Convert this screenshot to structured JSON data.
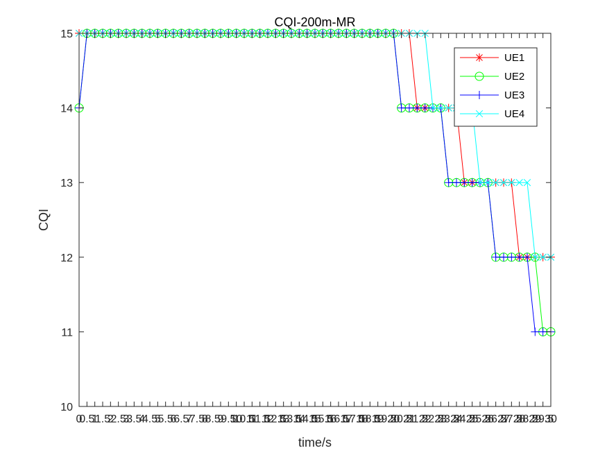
{
  "chart_data": {
    "type": "line",
    "title": "CQI-200m-MR",
    "xlabel": "time/s",
    "ylabel": "CQI",
    "xlim": [
      0,
      30
    ],
    "ylim": [
      10,
      15
    ],
    "x_tick_labels": [
      "0",
      "0.5",
      "1",
      "1.5",
      "2",
      "2.5",
      "3",
      "3.5",
      "4",
      "4.5",
      "5",
      "5.5",
      "6",
      "6.5",
      "7",
      "7.5",
      "8",
      "8.5",
      "9",
      "9.5",
      "10",
      "10.5",
      "11",
      "11.5",
      "12",
      "12.5",
      "13",
      "13.5",
      "14",
      "14.5",
      "15",
      "15.5",
      "16",
      "16.5",
      "17",
      "17.5",
      "18",
      "18.5",
      "19",
      "19.5",
      "20",
      "20.5",
      "21",
      "21.5",
      "22",
      "22.5",
      "23",
      "23.5",
      "24",
      "24.5",
      "25",
      "25.5",
      "26",
      "26.5",
      "27",
      "27.5",
      "28",
      "28.5",
      "29",
      "29.5",
      "30"
    ],
    "y_tick_labels": [
      "10",
      "11",
      "12",
      "13",
      "14",
      "15"
    ],
    "grid": false,
    "legend_position": "top-right",
    "series": [
      {
        "name": "UE1",
        "color": "#ff0000",
        "marker": "asterisk",
        "x": [
          0,
          0.5,
          1,
          1.5,
          2,
          2.5,
          3,
          3.5,
          4,
          4.5,
          5,
          5.5,
          6,
          6.5,
          7,
          7.5,
          8,
          8.5,
          9,
          9.5,
          10,
          10.5,
          11,
          11.5,
          12,
          12.5,
          13,
          13.5,
          14,
          14.5,
          15,
          15.5,
          16,
          16.5,
          17,
          17.5,
          18,
          18.5,
          19,
          19.5,
          20,
          20.5,
          21,
          21.5,
          22,
          22.5,
          23,
          23.5,
          24,
          24.5,
          25,
          25.5,
          26,
          26.5,
          27,
          27.5,
          28,
          28.5,
          29,
          29.5,
          30
        ],
        "y": [
          15,
          15,
          15,
          15,
          15,
          15,
          15,
          15,
          15,
          15,
          15,
          15,
          15,
          15,
          15,
          15,
          15,
          15,
          15,
          15,
          15,
          15,
          15,
          15,
          15,
          15,
          15,
          15,
          15,
          15,
          15,
          15,
          15,
          15,
          15,
          15,
          15,
          15,
          15,
          15,
          15,
          15,
          15,
          14,
          14,
          14,
          14,
          14,
          14,
          13,
          13,
          13,
          13,
          13,
          13,
          13,
          12,
          12,
          12,
          12,
          12
        ]
      },
      {
        "name": "UE2",
        "color": "#00ff00",
        "marker": "circle",
        "x": [
          0,
          0.5,
          1,
          1.5,
          2,
          2.5,
          3,
          3.5,
          4,
          4.5,
          5,
          5.5,
          6,
          6.5,
          7,
          7.5,
          8,
          8.5,
          9,
          9.5,
          10,
          10.5,
          11,
          11.5,
          12,
          12.5,
          13,
          13.5,
          14,
          14.5,
          15,
          15.5,
          16,
          16.5,
          17,
          17.5,
          18,
          18.5,
          19,
          19.5,
          20,
          20.5,
          21,
          21.5,
          22,
          22.5,
          23,
          23.5,
          24,
          24.5,
          25,
          25.5,
          26,
          26.5,
          27,
          27.5,
          28,
          28.5,
          29,
          29.5,
          30
        ],
        "y": [
          14,
          15,
          15,
          15,
          15,
          15,
          15,
          15,
          15,
          15,
          15,
          15,
          15,
          15,
          15,
          15,
          15,
          15,
          15,
          15,
          15,
          15,
          15,
          15,
          15,
          15,
          15,
          15,
          15,
          15,
          15,
          15,
          15,
          15,
          15,
          15,
          15,
          15,
          15,
          15,
          15,
          14,
          14,
          14,
          14,
          14,
          14,
          13,
          13,
          13,
          13,
          13,
          13,
          12,
          12,
          12,
          12,
          12,
          12,
          11,
          11
        ]
      },
      {
        "name": "UE3",
        "color": "#0000ff",
        "marker": "plus",
        "x": [
          0,
          0.5,
          1,
          1.5,
          2,
          2.5,
          3,
          3.5,
          4,
          4.5,
          5,
          5.5,
          6,
          6.5,
          7,
          7.5,
          8,
          8.5,
          9,
          9.5,
          10,
          10.5,
          11,
          11.5,
          12,
          12.5,
          13,
          13.5,
          14,
          14.5,
          15,
          15.5,
          16,
          16.5,
          17,
          17.5,
          18,
          18.5,
          19,
          19.5,
          20,
          20.5,
          21,
          21.5,
          22,
          22.5,
          23,
          23.5,
          24,
          24.5,
          25,
          25.5,
          26,
          26.5,
          27,
          27.5,
          28,
          28.5,
          29,
          29.5,
          30
        ],
        "y": [
          14,
          15,
          15,
          15,
          15,
          15,
          15,
          15,
          15,
          15,
          15,
          15,
          15,
          15,
          15,
          15,
          15,
          15,
          15,
          15,
          15,
          15,
          15,
          15,
          15,
          15,
          15,
          15,
          15,
          15,
          15,
          15,
          15,
          15,
          15,
          15,
          15,
          15,
          15,
          15,
          15,
          14,
          14,
          14,
          14,
          14,
          14,
          13,
          13,
          13,
          13,
          13,
          13,
          12,
          12,
          12,
          12,
          12,
          11,
          11,
          11
        ]
      },
      {
        "name": "UE4",
        "color": "#00ffff",
        "marker": "cross",
        "x": [
          0,
          0.5,
          1,
          1.5,
          2,
          2.5,
          3,
          3.5,
          4,
          4.5,
          5,
          5.5,
          6,
          6.5,
          7,
          7.5,
          8,
          8.5,
          9,
          9.5,
          10,
          10.5,
          11,
          11.5,
          12,
          12.5,
          13,
          13.5,
          14,
          14.5,
          15,
          15.5,
          16,
          16.5,
          17,
          17.5,
          18,
          18.5,
          19,
          19.5,
          20,
          20.5,
          21,
          21.5,
          22,
          22.5,
          23,
          23.5,
          24,
          24.5,
          25,
          25.5,
          26,
          26.5,
          27,
          27.5,
          28,
          28.5,
          29,
          29.5,
          30
        ],
        "y": [
          15,
          15,
          15,
          15,
          15,
          15,
          15,
          15,
          15,
          15,
          15,
          15,
          15,
          15,
          15,
          15,
          15,
          15,
          15,
          15,
          15,
          15,
          15,
          15,
          15,
          15,
          15,
          15,
          15,
          15,
          15,
          15,
          15,
          15,
          15,
          15,
          15,
          15,
          15,
          15,
          15,
          15,
          15,
          15,
          15,
          14,
          14,
          14,
          14,
          14,
          14,
          13,
          13,
          13,
          13,
          13,
          13,
          13,
          12,
          12,
          12
        ]
      }
    ]
  }
}
